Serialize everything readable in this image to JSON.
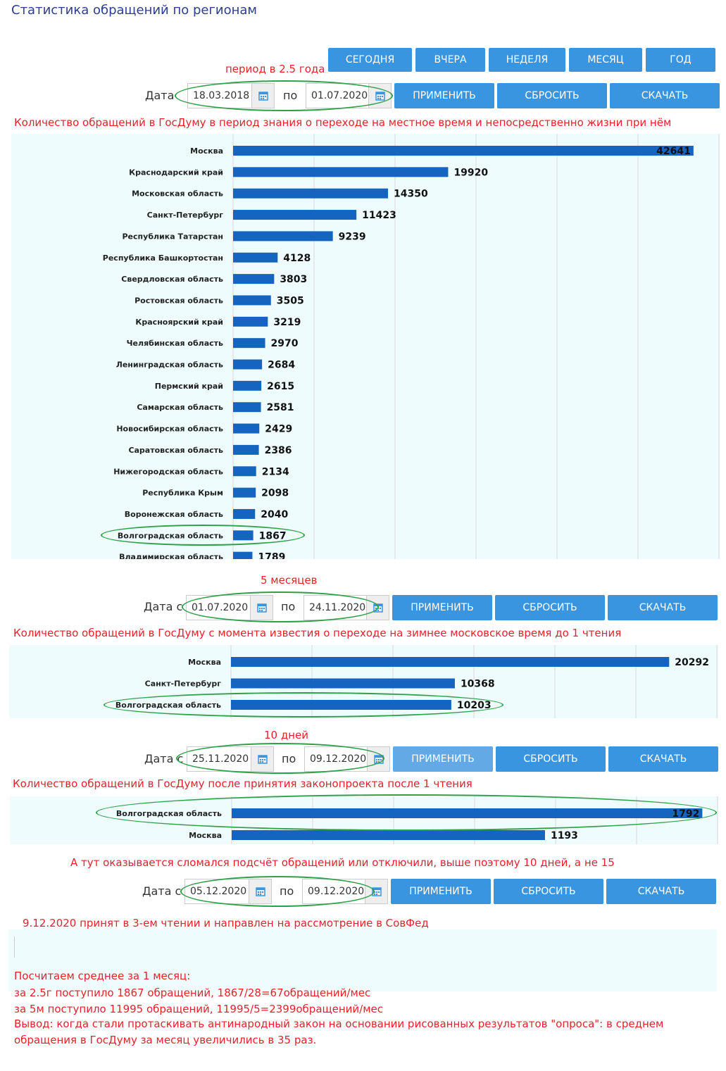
{
  "page_title": "Статистика обращений по регионам",
  "period_buttons": [
    "СЕГОДНЯ",
    "ВЧЕРА",
    "НЕДЕЛЯ",
    "МЕСЯЦ",
    "ГОД"
  ],
  "actions": {
    "apply": "ПРИМЕНИТЬ",
    "reset": "СБРОСИТЬ",
    "download": "СКАЧАТЬ"
  },
  "colors": {
    "button": "#3a95e0",
    "bar": "#1565c0",
    "annotation": "#e8212b",
    "ellipse": "#2ea04a",
    "panel": "#eefcfd"
  },
  "sections": [
    {
      "annotation_period": "период в 2.5 года",
      "date_label": "Дата",
      "from": "18.03.2018",
      "sep": "по",
      "to": "01.07.2020",
      "caption": "Количество обращений в ГосДуму в период знания о переходе на местное время и непосредственно жизни при нём"
    },
    {
      "annotation_period": "5 месяцев",
      "date_label": "Дата с",
      "from": "01.07.2020",
      "sep": "по",
      "to": "24.11.2020",
      "caption": "Количество обращений в ГосДуму с момента известия о переходе на зимнее московское время до 1 чтения"
    },
    {
      "annotation_period": "10 дней",
      "date_label": "Дата с",
      "from": "25.11.2020",
      "sep": "по",
      "to": "09.12.2020",
      "caption": "Количество обращений в ГосДуму после принятия законопроекта после 1 чтения"
    },
    {
      "annotation_period": "А тут оказывается сломался подсчёт обращений или отключили, выше поэтому 10 дней, а не 15",
      "date_label": "Дата с",
      "from": "05.12.2020",
      "sep": "по",
      "to": "09.12.2020",
      "caption": "9.12.2020 принят в 3-ем чтении и направлен на рассмотрение в СовФед"
    }
  ],
  "chart_data": [
    {
      "type": "bar",
      "orientation": "horizontal",
      "categories": [
        "Москва",
        "Краснодарский край",
        "Московская область",
        "Санкт-Петербург",
        "Республика Татарстан",
        "Республика Башкортостан",
        "Свердловская область",
        "Ростовская область",
        "Красноярский край",
        "Челябинская область",
        "Ленинградская область",
        "Пермский край",
        "Самарская область",
        "Новосибирская область",
        "Саратовская область",
        "Нижегородская область",
        "Республика Крым",
        "Воронежская область",
        "Волгоградская область",
        "Владимирская область"
      ],
      "values": [
        42641,
        19920,
        14350,
        11423,
        9239,
        4128,
        3803,
        3505,
        3219,
        2970,
        2684,
        2615,
        2581,
        2429,
        2386,
        2134,
        2098,
        2040,
        1867,
        1789
      ],
      "xlim": [
        0,
        45000
      ],
      "highlight": "Волгоградская область"
    },
    {
      "type": "bar",
      "orientation": "horizontal",
      "categories": [
        "Москва",
        "Санкт-Петербург",
        "Волгоградская область"
      ],
      "values": [
        20292,
        10368,
        10203
      ],
      "xlim": [
        0,
        22500
      ],
      "highlight": "Волгоградская область"
    },
    {
      "type": "bar",
      "orientation": "horizontal",
      "categories": [
        "Волгоградская область",
        "Москва"
      ],
      "values": [
        1792,
        1193
      ],
      "xlim": [
        0,
        1850
      ],
      "highlight": "Волгоградская область"
    }
  ],
  "summary": [
    "Посчитаем среднее за 1 месяц:",
    "за 2.5г поступило 1867 обращений, 1867/28=67обращений/мес",
    "за 5м поступило 11995 обращений, 11995/5=2399обращений/мес",
    "Вывод: когда стали протаскивать антинародный закон на основании рисованных результатов \"опроса\": в среднем",
    "обращения в ГосДуму за месяц увеличились в 35 раз."
  ]
}
